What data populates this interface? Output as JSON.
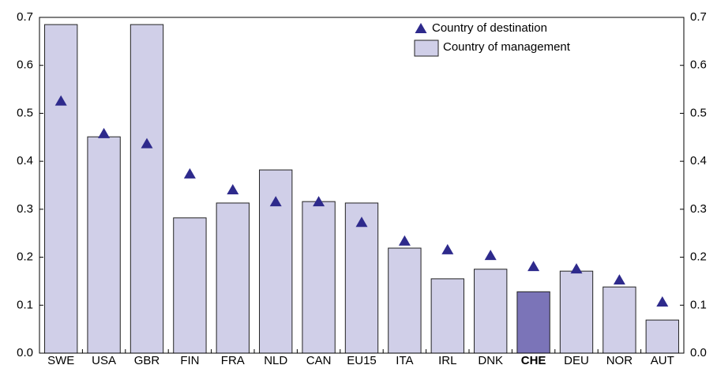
{
  "chart_data": {
    "type": "bar",
    "categories": [
      "SWE",
      "USA",
      "GBR",
      "FIN",
      "FRA",
      "NLD",
      "CAN",
      "EU15",
      "ITA",
      "IRL",
      "DNK",
      "CHE",
      "DEU",
      "NOR",
      "AUT"
    ],
    "series": [
      {
        "name": "Country of destination",
        "type": "marker",
        "color": "#2e2a8c",
        "values": [
          0.526,
          0.458,
          0.437,
          0.374,
          0.341,
          0.316,
          0.316,
          0.273,
          0.234,
          0.216,
          0.204,
          0.181,
          0.176,
          0.153,
          0.107
        ]
      },
      {
        "name": "Country of management",
        "type": "bar",
        "color": "#d0cfe8",
        "values": [
          0.685,
          0.451,
          0.685,
          0.282,
          0.313,
          0.382,
          0.316,
          0.313,
          0.219,
          0.155,
          0.175,
          0.128,
          0.171,
          0.138,
          0.069
        ]
      }
    ],
    "highlight": "CHE",
    "highlight_color": "#7b74b8",
    "ylim": [
      0,
      0.7
    ],
    "yticks": [
      {
        "value": 0,
        "label": "0.0"
      },
      0.1,
      0.2,
      0.3,
      0.4,
      0.5,
      0.6,
      0.7
    ],
    "y2lim": [
      0,
      0.7
    ],
    "y2ticks": [
      {
        "value": 0,
        "label": "0.0"
      },
      0.1,
      0.2,
      0.3,
      0.4,
      0.5,
      0.6,
      0.7
    ],
    "grid": false,
    "legend": "top-right"
  }
}
